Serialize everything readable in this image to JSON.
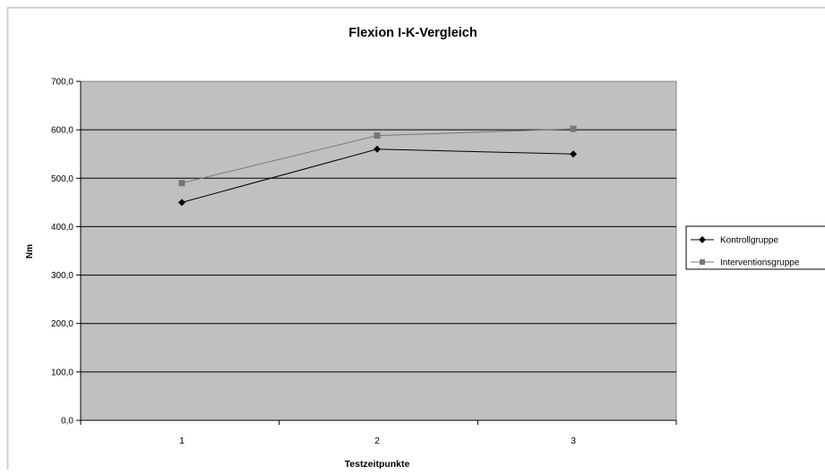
{
  "chart_data": {
    "type": "line",
    "title": "Flexion I-K-Vergleich",
    "xlabel": "Testzeitpunkte",
    "ylabel": "Nm",
    "categories": [
      "1",
      "2",
      "3"
    ],
    "ylim": [
      0,
      700
    ],
    "yticks": [
      "0,0",
      "100,0",
      "200,0",
      "300,0",
      "400,0",
      "500,0",
      "600,0",
      "700,0"
    ],
    "grid": true,
    "legend_position": "right",
    "series": [
      {
        "name": "Kontrollgruppe",
        "values": [
          450,
          560,
          550
        ],
        "color": "#000000",
        "marker": "diamond"
      },
      {
        "name": "Interventionsgruppe",
        "values": [
          490,
          588,
          602
        ],
        "color": "#777777",
        "marker": "square"
      }
    ],
    "plot_background": "#c0c0c0"
  }
}
